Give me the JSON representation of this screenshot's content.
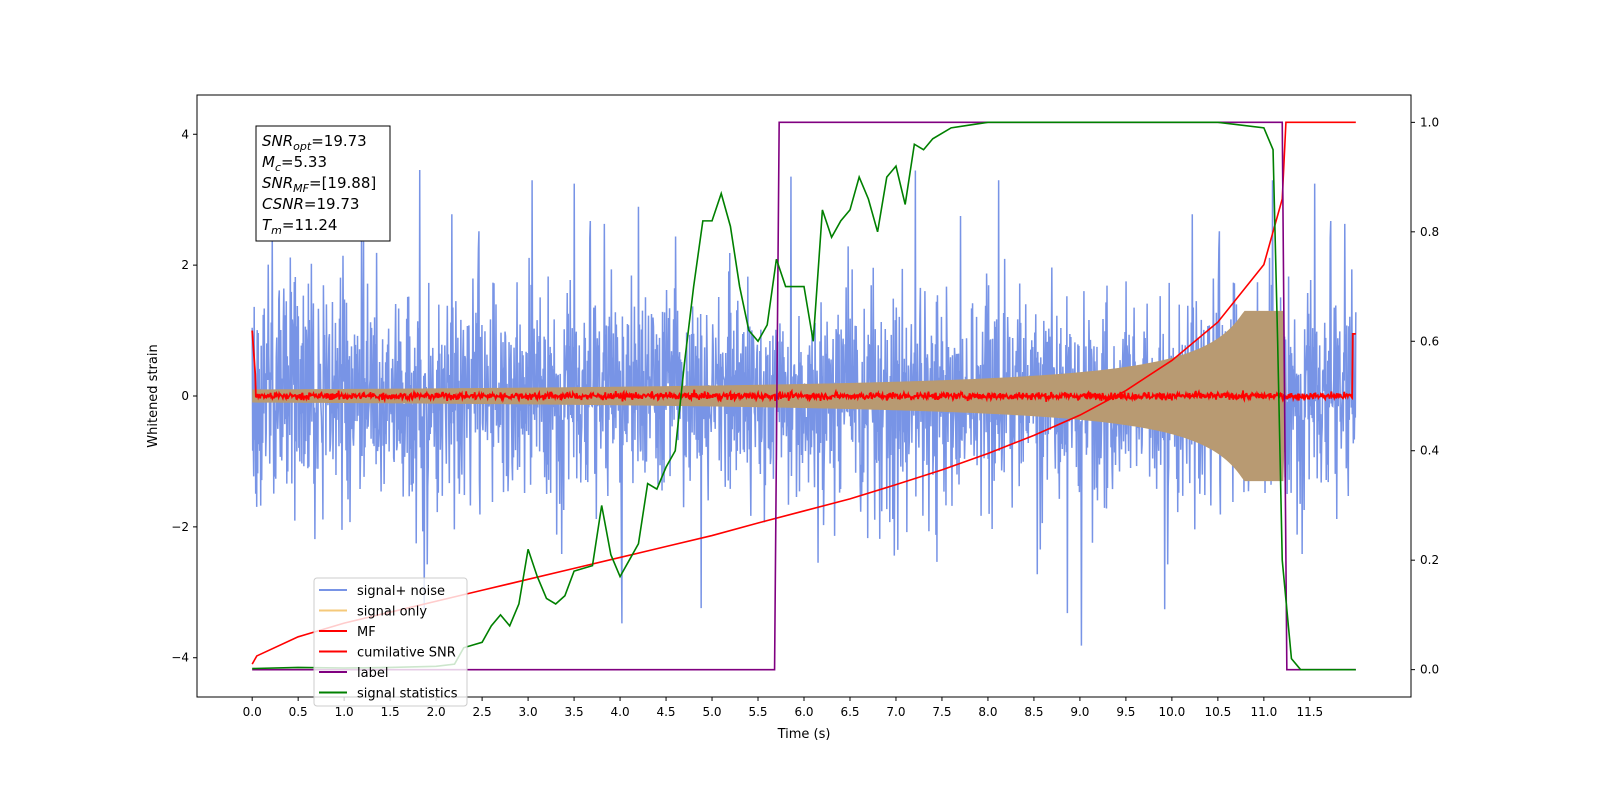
{
  "chart_data": {
    "type": "line",
    "xlabel": "Time (s)",
    "ylabel": "Whitened strain",
    "xlim": [
      -0.6,
      12.6
    ],
    "ylim_left": [
      -4.6,
      4.6
    ],
    "ylim_right": [
      -0.05,
      1.05
    ],
    "x_ticks": [
      "0.0",
      "0.5",
      "1.0",
      "1.5",
      "2.0",
      "2.5",
      "3.0",
      "3.5",
      "4.0",
      "4.5",
      "5.0",
      "5.5",
      "6.0",
      "6.5",
      "7.0",
      "7.5",
      "8.0",
      "8.5",
      "9.0",
      "9.5",
      "10.0",
      "10.5",
      "11.0",
      "11.5"
    ],
    "y_ticks_left": [
      "4",
      "2",
      "0",
      "−2",
      "−4"
    ],
    "y_ticks_right": [
      "1.0",
      "0.8",
      "0.6",
      "0.4",
      "0.2",
      "0.0"
    ],
    "legend_position": "lower left",
    "grid": false,
    "stats": {
      "snr_opt": {
        "main": "SNR",
        "sub": "opt",
        "value": "=19.73"
      },
      "mc": {
        "main": "M",
        "sub": "c",
        "value": "=5.33"
      },
      "snr_mf": {
        "main": "SNR",
        "sub": "MF",
        "value": "=[19.88]"
      },
      "csnr": {
        "main": "CSNR",
        "sub": "",
        "value": "=19.73"
      },
      "tm": {
        "main": "T",
        "sub": "m",
        "value": "=11.24"
      }
    },
    "series": [
      {
        "name": "signal+ noise",
        "axis": "left",
        "color": "#7894e6",
        "description": "noisy whitened strain, amplitude ~±2 with peaks to ~±3.5, x from 0 to 12"
      },
      {
        "name": "signal only",
        "axis": "left",
        "color": "#f5c97a",
        "envelope": {
          "t_merger": 11.24,
          "amp_start": 0.1,
          "amp_end": 1.3
        }
      },
      {
        "name": "MF",
        "axis": "left",
        "color": "#ff0000",
        "description": "matched filter output near 0 with noise ±0.12, spikes near edges"
      },
      {
        "name": "cumilative SNR",
        "axis": "right",
        "color": "#ff0000",
        "x": [
          0,
          0.05,
          0.5,
          1,
          1.5,
          2,
          2.5,
          3,
          3.5,
          4,
          4.5,
          5,
          5.5,
          6,
          6.5,
          7,
          7.5,
          8,
          8.5,
          9,
          9.5,
          10,
          10.5,
          11,
          11.2,
          11.24,
          12
        ],
        "y": [
          0.01,
          0.025,
          0.06,
          0.085,
          0.105,
          0.125,
          0.145,
          0.165,
          0.185,
          0.205,
          0.225,
          0.245,
          0.268,
          0.29,
          0.312,
          0.338,
          0.365,
          0.395,
          0.428,
          0.465,
          0.51,
          0.565,
          0.635,
          0.74,
          0.86,
          1.0,
          1.0
        ]
      },
      {
        "name": "label",
        "axis": "right",
        "color": "#800080",
        "x": [
          0,
          5.68,
          5.73,
          11.2,
          11.25,
          12
        ],
        "y": [
          0,
          0,
          1,
          1,
          0,
          0
        ]
      },
      {
        "name": "signal statistics",
        "axis": "right",
        "color": "#008000",
        "x": [
          0,
          0.5,
          1,
          1.5,
          2,
          2.2,
          2.3,
          2.4,
          2.5,
          2.6,
          2.7,
          2.8,
          2.9,
          3,
          3.1,
          3.2,
          3.3,
          3.4,
          3.5,
          3.6,
          3.7,
          3.8,
          3.9,
          4,
          4.1,
          4.2,
          4.3,
          4.4,
          4.5,
          4.6,
          4.7,
          4.8,
          4.9,
          5,
          5.1,
          5.2,
          5.3,
          5.4,
          5.5,
          5.6,
          5.7,
          5.8,
          5.9,
          6,
          6.1,
          6.2,
          6.3,
          6.4,
          6.5,
          6.6,
          6.7,
          6.8,
          6.9,
          7,
          7.1,
          7.2,
          7.3,
          7.4,
          7.5,
          7.6,
          7.8,
          8,
          8.5,
          9,
          9.5,
          10,
          10.5,
          11,
          11.1,
          11.15,
          11.2,
          11.3,
          11.4,
          11.5,
          12
        ],
        "y": [
          0.002,
          0.004,
          0.003,
          0.004,
          0.006,
          0.01,
          0.04,
          0.045,
          0.05,
          0.08,
          0.1,
          0.08,
          0.12,
          0.22,
          0.17,
          0.13,
          0.12,
          0.135,
          0.18,
          0.185,
          0.19,
          0.3,
          0.21,
          0.17,
          0.2,
          0.23,
          0.34,
          0.33,
          0.37,
          0.4,
          0.56,
          0.7,
          0.82,
          0.82,
          0.87,
          0.81,
          0.7,
          0.62,
          0.6,
          0.63,
          0.75,
          0.7,
          0.7,
          0.7,
          0.6,
          0.84,
          0.79,
          0.82,
          0.84,
          0.9,
          0.86,
          0.8,
          0.9,
          0.92,
          0.85,
          0.96,
          0.95,
          0.97,
          0.98,
          0.99,
          0.995,
          1.0,
          1.0,
          1.0,
          1.0,
          1.0,
          1.0,
          0.99,
          0.95,
          0.6,
          0.2,
          0.02,
          0.0,
          0.0,
          0.0
        ]
      }
    ]
  }
}
